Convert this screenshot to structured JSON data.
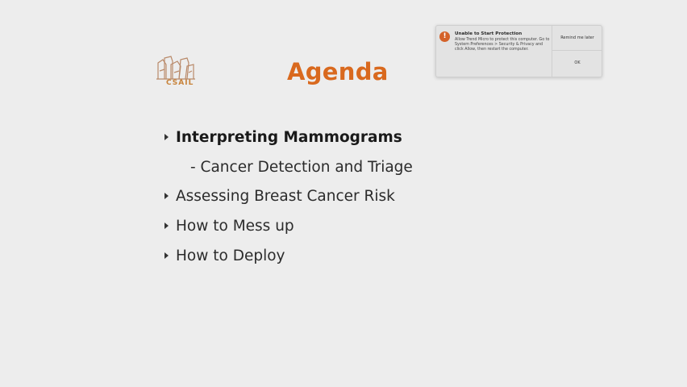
{
  "logo": {
    "text": "CSAIL"
  },
  "slide": {
    "title": "Agenda",
    "items": [
      {
        "label": "Interpreting Mammograms"
      },
      {
        "label": "- Cancer Detection and Triage"
      },
      {
        "label": "Assessing Breast Cancer Risk"
      },
      {
        "label": "How to Mess up"
      },
      {
        "label": "How to Deploy"
      }
    ]
  },
  "notification": {
    "icon": "alert-icon",
    "title": "Unable to Start Protection",
    "body": "Allow Trend Micro to protect this computer. Go to System Preferences > Security & Privacy and click Allow, then restart the computer.",
    "remind_label": "Remind me later",
    "ok_label": "OK",
    "accent": "#d4622a"
  },
  "colors": {
    "title": "#d9691e",
    "background": "#ededed"
  }
}
